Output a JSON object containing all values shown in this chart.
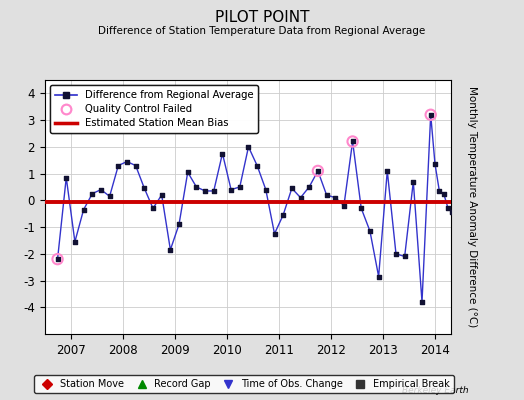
{
  "title": "PILOT POINT",
  "subtitle": "Difference of Station Temperature Data from Regional Average",
  "ylabel": "Monthly Temperature Anomaly Difference (°C)",
  "bias": -0.05,
  "xlim": [
    2006.5,
    2014.3
  ],
  "ylim": [
    -5,
    4.5
  ],
  "yticks": [
    -4,
    -3,
    -2,
    -1,
    0,
    1,
    2,
    3,
    4
  ],
  "xticks": [
    2007,
    2008,
    2009,
    2010,
    2011,
    2012,
    2013,
    2014
  ],
  "background_color": "#e0e0e0",
  "plot_bg_color": "#ffffff",
  "line_color": "#3333cc",
  "marker_color": "#111133",
  "bias_color": "#cc0000",
  "qc_color": "#ff88cc",
  "time_series": [
    [
      2006.75,
      -2.2
    ],
    [
      2006.917,
      0.85
    ],
    [
      2007.083,
      -1.55
    ],
    [
      2007.25,
      -0.35
    ],
    [
      2007.417,
      0.25
    ],
    [
      2007.583,
      0.4
    ],
    [
      2007.75,
      0.15
    ],
    [
      2007.917,
      1.3
    ],
    [
      2008.083,
      1.45
    ],
    [
      2008.25,
      1.3
    ],
    [
      2008.417,
      0.45
    ],
    [
      2008.583,
      -0.3
    ],
    [
      2008.75,
      0.2
    ],
    [
      2008.917,
      -1.85
    ],
    [
      2009.083,
      -0.9
    ],
    [
      2009.25,
      1.05
    ],
    [
      2009.417,
      0.5
    ],
    [
      2009.583,
      0.35
    ],
    [
      2009.75,
      0.35
    ],
    [
      2009.917,
      1.75
    ],
    [
      2010.083,
      0.4
    ],
    [
      2010.25,
      0.5
    ],
    [
      2010.417,
      2.0
    ],
    [
      2010.583,
      1.3
    ],
    [
      2010.75,
      0.4
    ],
    [
      2010.917,
      -1.25
    ],
    [
      2011.083,
      -0.55
    ],
    [
      2011.25,
      0.45
    ],
    [
      2011.417,
      0.1
    ],
    [
      2011.583,
      0.5
    ],
    [
      2011.75,
      1.1
    ],
    [
      2011.917,
      0.2
    ],
    [
      2012.083,
      0.1
    ],
    [
      2012.25,
      -0.2
    ],
    [
      2012.417,
      2.2
    ],
    [
      2012.583,
      -0.3
    ],
    [
      2012.75,
      -1.15
    ],
    [
      2012.917,
      -2.85
    ],
    [
      2013.083,
      1.1
    ],
    [
      2013.25,
      -2.0
    ],
    [
      2013.417,
      -2.1
    ],
    [
      2013.583,
      0.7
    ],
    [
      2013.75,
      -3.8
    ],
    [
      2013.917,
      3.2
    ],
    [
      2014.0,
      1.35
    ],
    [
      2014.083,
      0.35
    ],
    [
      2014.167,
      0.25
    ],
    [
      2014.25,
      -0.3
    ],
    [
      2014.333,
      -0.45
    ]
  ],
  "qc_failed": [
    [
      2006.75,
      -2.2
    ],
    [
      2012.417,
      2.2
    ],
    [
      2011.75,
      1.1
    ],
    [
      2013.917,
      3.2
    ]
  ],
  "bottom_legend": [
    {
      "label": "Station Move",
      "color": "#cc0000",
      "marker": "D"
    },
    {
      "label": "Record Gap",
      "color": "#008800",
      "marker": "^"
    },
    {
      "label": "Time of Obs. Change",
      "color": "#3333cc",
      "marker": "v"
    },
    {
      "label": "Empirical Break",
      "color": "#333333",
      "marker": "s"
    }
  ]
}
